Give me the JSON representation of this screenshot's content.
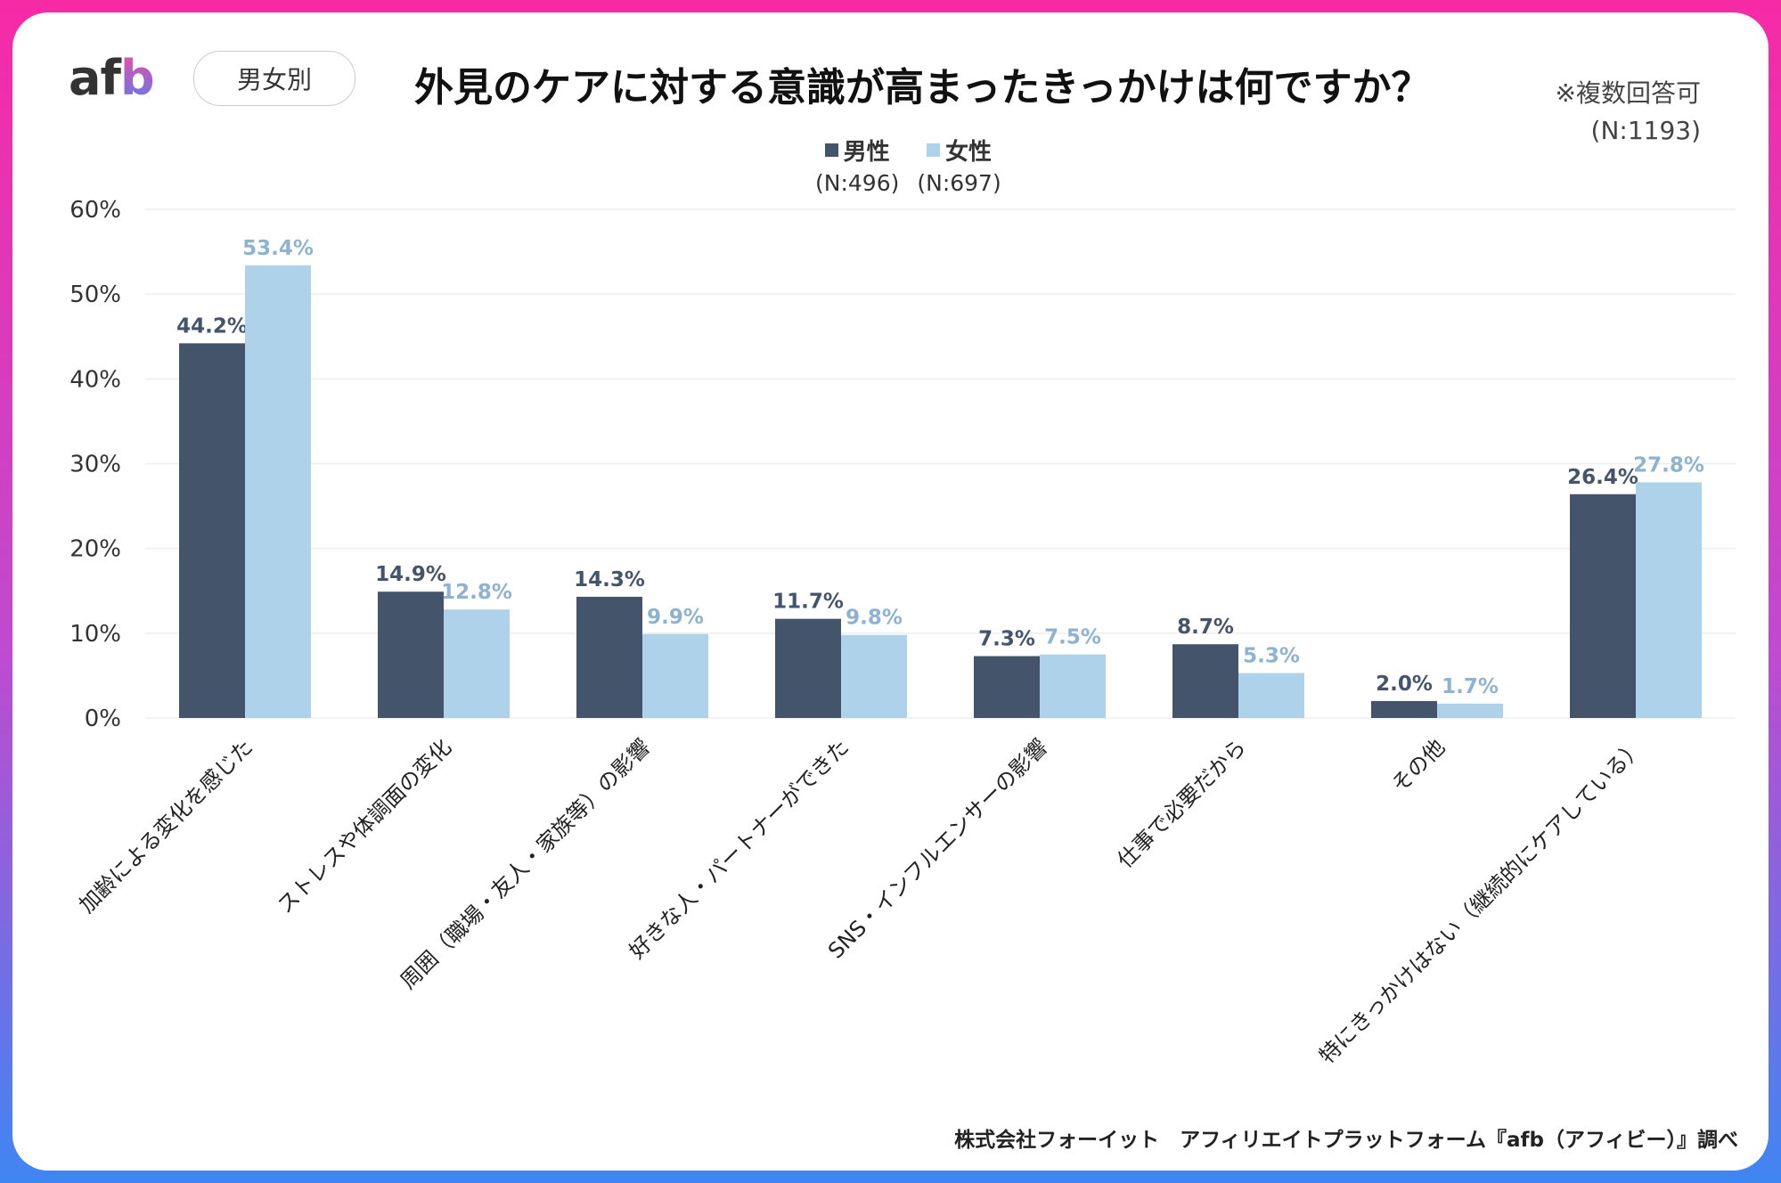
{
  "header": {
    "logo": "afb",
    "badge": "男女別",
    "title": "外見のケアに対する意識が高まったきっかけは何ですか？",
    "multi_answer_note": "※複数回答可",
    "total_n": "(N:1193)"
  },
  "footer": {
    "credit": "株式会社フォーイット　アフィリエイトプラットフォーム『afb（アフィビー）』調べ"
  },
  "colors": {
    "male": "#44546a",
    "female": "#aed2ea",
    "female_label": "#8db3d0",
    "grid": "#eeeeee"
  },
  "chart_data": {
    "type": "bar",
    "title": "外見のケアに対する意識が高まったきっかけは何ですか？",
    "ylim": [
      0,
      60
    ],
    "yticks": [
      "0%",
      "10%",
      "20%",
      "30%",
      "40%",
      "50%",
      "60%"
    ],
    "grid": true,
    "legend_placement": "top-center",
    "categories": [
      "加齢による変化を感じた",
      "ストレスや体調面の変化",
      "周囲（職場・友人・家族等）の影響",
      "好きな人・パートナーができた",
      "SNS・インフルエンサーの影響",
      "仕事で必要だから",
      "その他",
      "特にきっかけはない（継続的にケアしている）"
    ],
    "series": [
      {
        "name": "男性",
        "n": "(N:496)",
        "values": [
          44.2,
          14.9,
          14.3,
          11.7,
          7.3,
          8.7,
          2.0,
          26.4
        ]
      },
      {
        "name": "女性",
        "n": "(N:697)",
        "values": [
          53.4,
          12.8,
          9.9,
          9.8,
          7.5,
          5.3,
          1.7,
          27.8
        ]
      }
    ]
  }
}
